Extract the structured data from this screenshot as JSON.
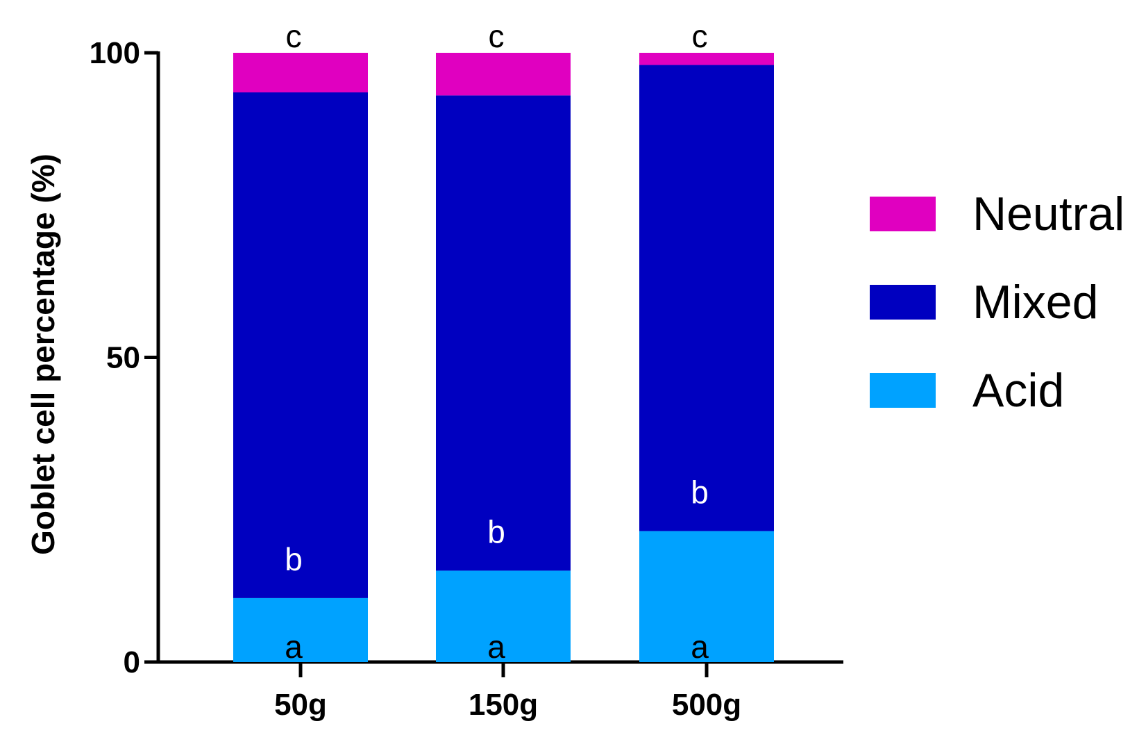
{
  "chart_data": {
    "type": "bar",
    "stacked": true,
    "categories": [
      "50g",
      "150g",
      "500g"
    ],
    "series": [
      {
        "name": "Acid",
        "color": "#00a2ff",
        "values": [
          10.5,
          15,
          21.5
        ],
        "label": "a",
        "label_color": "#000000"
      },
      {
        "name": "Mixed",
        "color": "#0000c0",
        "values": [
          83,
          78,
          76.5
        ],
        "label": "b",
        "label_color": "#ffffff"
      },
      {
        "name": "Neutral",
        "color": "#e000c0",
        "values": [
          6.5,
          7,
          2
        ],
        "label": "c",
        "label_color": "#000000"
      }
    ],
    "legend_order": [
      "Neutral",
      "Mixed",
      "Acid"
    ],
    "legend_position": "right",
    "title": "",
    "xlabel": "",
    "ylabel": "Goblet cell percentage (%)",
    "ylim": [
      0,
      100
    ],
    "yticks": [
      "0",
      "50",
      "100"
    ],
    "grid": false
  }
}
